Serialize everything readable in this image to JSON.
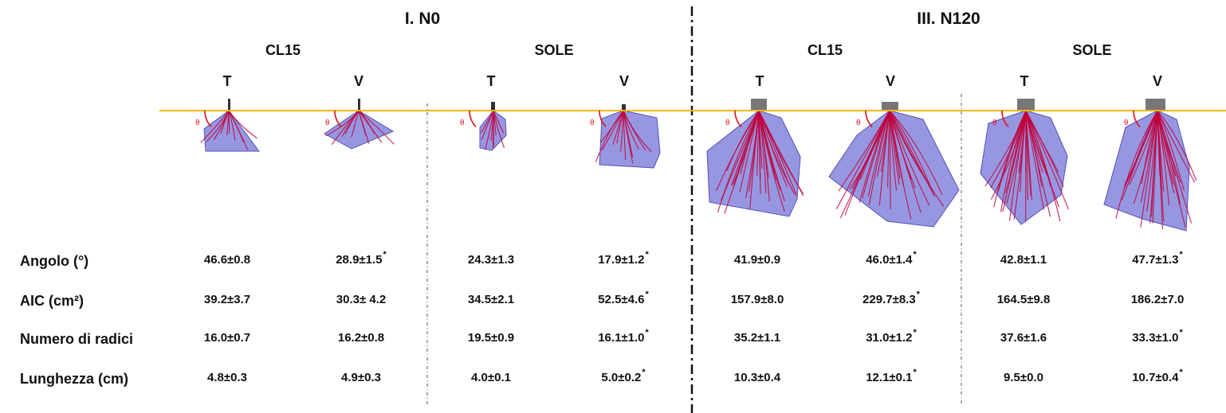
{
  "groups": [
    {
      "title": "I. N0",
      "subgroups": [
        {
          "name": "CL15",
          "cols": [
            "T",
            "V"
          ]
        },
        {
          "name": "SOLE",
          "cols": [
            "T",
            "V"
          ]
        }
      ]
    },
    {
      "title": "III. N120",
      "subgroups": [
        {
          "name": "CL15",
          "cols": [
            "T",
            "V"
          ]
        },
        {
          "name": "SOLE",
          "cols": [
            "T",
            "V"
          ]
        }
      ]
    }
  ],
  "angle_symbol": "θ",
  "rows": [
    {
      "label": "Angolo (°)",
      "values": [
        {
          "v": "46.6±0.8",
          "sig": ""
        },
        {
          "v": "28.9±1.5",
          "sig": "*"
        },
        {
          "v": "24.3±1.3",
          "sig": ""
        },
        {
          "v": "17.9±1.2",
          "sig": "*"
        },
        {
          "v": "41.9±0.9",
          "sig": ""
        },
        {
          "v": "46.0±1.4",
          "sig": "*"
        },
        {
          "v": "42.8±1.1",
          "sig": ""
        },
        {
          "v": "47.7±1.3",
          "sig": "*"
        }
      ]
    },
    {
      "label": "AIC (cm²)",
      "values": [
        {
          "v": "39.2±3.7",
          "sig": ""
        },
        {
          "v": "30.3± 4.2",
          "sig": ""
        },
        {
          "v": "34.5±2.1",
          "sig": ""
        },
        {
          "v": "52.5±4.6",
          "sig": "*"
        },
        {
          "v": "157.9±8.0",
          "sig": ""
        },
        {
          "v": "229.7±8.3",
          "sig": "*"
        },
        {
          "v": "164.5±9.8",
          "sig": ""
        },
        {
          "v": "186.2±7.0",
          "sig": ""
        }
      ]
    },
    {
      "label": "Numero di radici",
      "values": [
        {
          "v": "16.0±0.7",
          "sig": ""
        },
        {
          "v": "16.2±0.8",
          "sig": ""
        },
        {
          "v": "19.5±0.9",
          "sig": ""
        },
        {
          "v": "16.1±1.0",
          "sig": "*"
        },
        {
          "v": "35.2±1.1",
          "sig": ""
        },
        {
          "v": "31.0±1.2",
          "sig": "*"
        },
        {
          "v": "37.6±1.6",
          "sig": ""
        },
        {
          "v": "33.3±1.0",
          "sig": "*"
        }
      ]
    },
    {
      "label": "Lunghezza (cm)",
      "values": [
        {
          "v": "4.8±0.3",
          "sig": ""
        },
        {
          "v": "4.9±0.3",
          "sig": ""
        },
        {
          "v": "4.0±0.1",
          "sig": ""
        },
        {
          "v": "5.0±0.2",
          "sig": "*"
        },
        {
          "v": "10.3±0.4",
          "sig": ""
        },
        {
          "v": "12.1±0.1",
          "sig": "*"
        },
        {
          "v": "9.5±0.0",
          "sig": ""
        },
        {
          "v": "10.7±0.4",
          "sig": "*"
        }
      ]
    }
  ],
  "colors": {
    "soil_line": "#f2b800",
    "hull_fill": "#6f6fd6",
    "root": "#c0003a",
    "angle_arc": "#e0101c"
  }
}
